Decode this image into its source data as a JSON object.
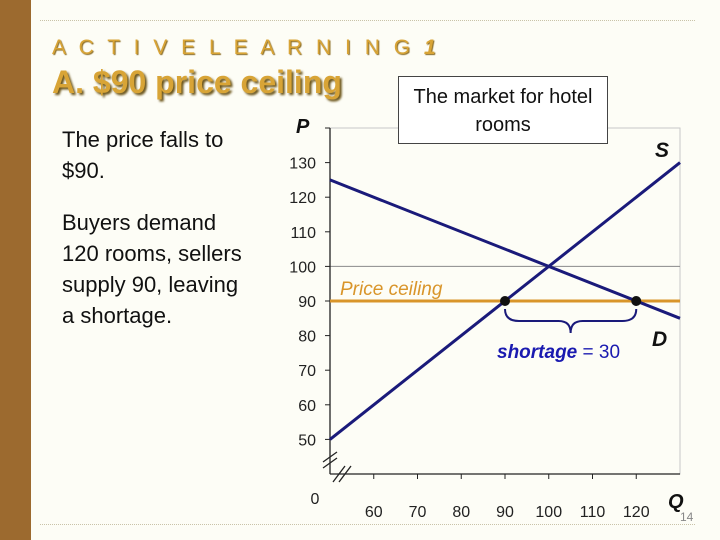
{
  "slide": {
    "kicker": "A C T I V E   L E A R N I N G",
    "kicker_number": "1",
    "title": "A.  $90 price ceiling",
    "body_paragraph_1": "The price falls to $90.",
    "body_paragraph_2": "Buyers demand 120 rooms, sellers supply 90, leaving a shortage.",
    "callout": "The market for hotel rooms",
    "slide_number": "14"
  },
  "colors": {
    "accent": "#d8a436",
    "sidebar": "#9c6a2f",
    "curve": "#1a1a7a",
    "ceiling": "#d9952a"
  },
  "chart_data": {
    "type": "line",
    "title": "The market for hotel rooms",
    "xlabel": "Q",
    "ylabel": "P",
    "origin_label": "0",
    "xlim": [
      50,
      130
    ],
    "ylim": [
      40,
      140
    ],
    "x_ticks": [
      60,
      70,
      80,
      90,
      100,
      110,
      120
    ],
    "y_ticks": [
      50,
      60,
      70,
      80,
      90,
      100,
      110,
      120,
      130
    ],
    "series": [
      {
        "name": "S",
        "points": [
          [
            50,
            50
          ],
          [
            130,
            130
          ]
        ]
      },
      {
        "name": "D",
        "points": [
          [
            50,
            125
          ],
          [
            130,
            85
          ]
        ]
      }
    ],
    "equilibrium_price": 100,
    "price_ceiling": {
      "label": "Price ceiling",
      "value": 90
    },
    "points": [
      {
        "name": "quantity supplied",
        "x": 90,
        "y": 90
      },
      {
        "name": "quantity demanded",
        "x": 120,
        "y": 90
      }
    ],
    "annotation": {
      "label": "shortage",
      "value_text": "= 30",
      "value": 30
    }
  }
}
